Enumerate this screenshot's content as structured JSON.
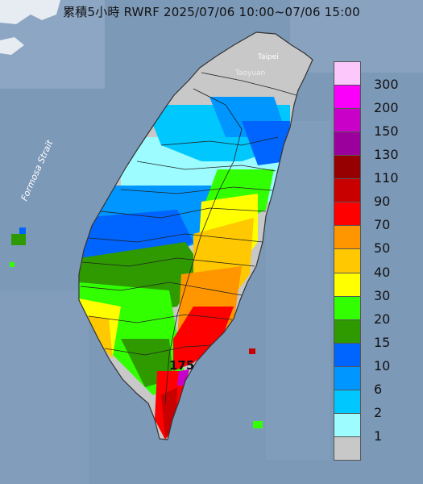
{
  "title": "累積5小時 RWRF 2025/07/06 10:00~07/06 15:00",
  "places": {
    "taipei": "Taipei",
    "taoyuan": "Taoyuan",
    "strait": "Formosa Strait",
    "max_value": "175"
  },
  "legend": {
    "unit_levels": [
      {
        "label": "300",
        "color": "#fcc8fc"
      },
      {
        "label": "200",
        "color": "#fa00fa"
      },
      {
        "label": "150",
        "color": "#c800c8"
      },
      {
        "label": "130",
        "color": "#9c009c"
      },
      {
        "label": "110",
        "color": "#960000"
      },
      {
        "label": "90",
        "color": "#c80000"
      },
      {
        "label": "70",
        "color": "#ff0000"
      },
      {
        "label": "50",
        "color": "#ff9600"
      },
      {
        "label": "40",
        "color": "#ffc800"
      },
      {
        "label": "30",
        "color": "#ffff00"
      },
      {
        "label": "20",
        "color": "#32ff00"
      },
      {
        "label": "15",
        "color": "#2e9a00"
      },
      {
        "label": "10",
        "color": "#0064ff"
      },
      {
        "label": "6",
        "color": "#0096ff"
      },
      {
        "label": "2",
        "color": "#00c8ff"
      },
      {
        "label": "1",
        "color": "#9cfcff"
      },
      {
        "label": "",
        "color": "#c8c8c8"
      }
    ]
  },
  "colors": {
    "sea": "#7d99b8",
    "land_gray": "#c8c8c8",
    "boundary": "#222222"
  }
}
